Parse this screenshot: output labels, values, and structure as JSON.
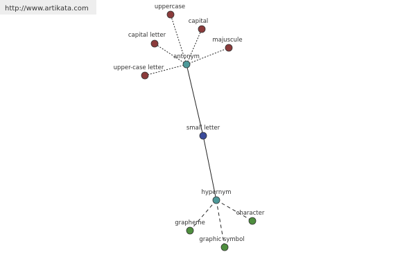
{
  "watermark": "http://www.artikata.com",
  "nodes": [
    {
      "label": "small letter"
    },
    {
      "label": "antonym"
    },
    {
      "label": "hypernym"
    },
    {
      "label": "uppercase"
    },
    {
      "label": "capital"
    },
    {
      "label": "capital letter"
    },
    {
      "label": "majuscule"
    },
    {
      "label": "upper-case letter"
    },
    {
      "label": "grapheme"
    },
    {
      "label": "graphic symbol"
    },
    {
      "label": "character"
    }
  ]
}
